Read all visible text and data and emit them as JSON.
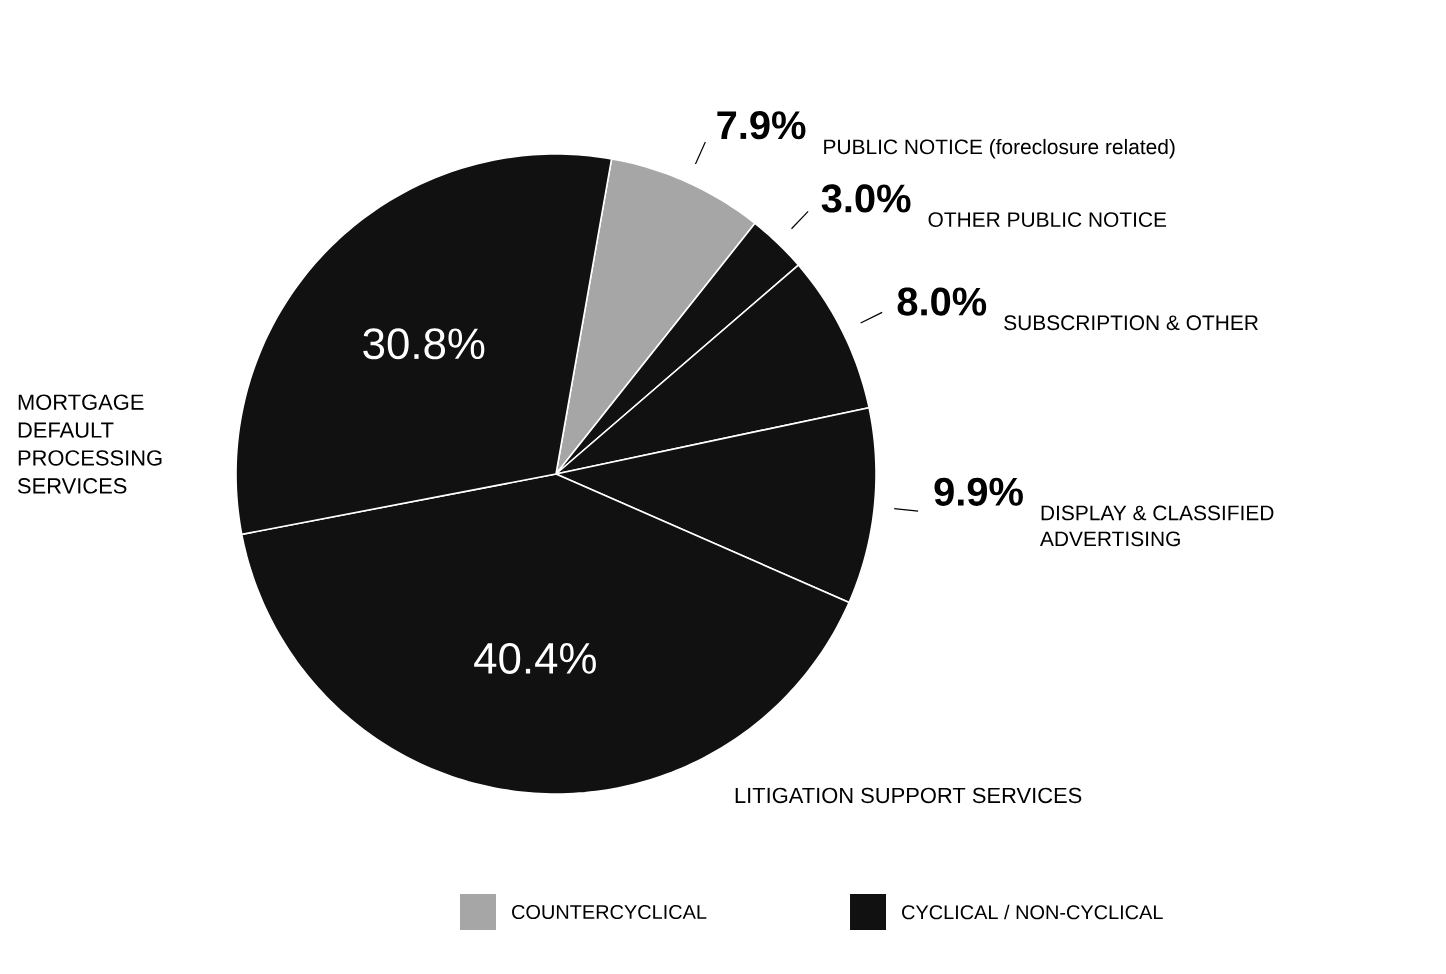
{
  "chart_data": {
    "type": "pie",
    "categories": [
      "PUBLIC NOTICE (foreclosure related)",
      "OTHER PUBLIC NOTICE",
      "SUBSCRIPTION & OTHER",
      "DISPLAY & CLASSIFIED ADVERTISING",
      "LITIGATION SUPPORT SERVICES",
      "MORTGAGE DEFAULT PROCESSING SERVICES"
    ],
    "values": [
      7.9,
      3.0,
      8.0,
      9.9,
      40.4,
      30.8
    ],
    "value_labels": [
      "7.9%",
      "3.0%",
      "8.0%",
      "9.9%",
      "40.4%",
      "30.8%"
    ],
    "colors": [
      "#a6a6a6",
      "#111111",
      "#111111",
      "#111111",
      "#111111",
      "#111111"
    ],
    "annotations": [
      "COUNTERCYCLICAL",
      "CYCLICAL / NON-CYCLICAL"
    ]
  }
}
